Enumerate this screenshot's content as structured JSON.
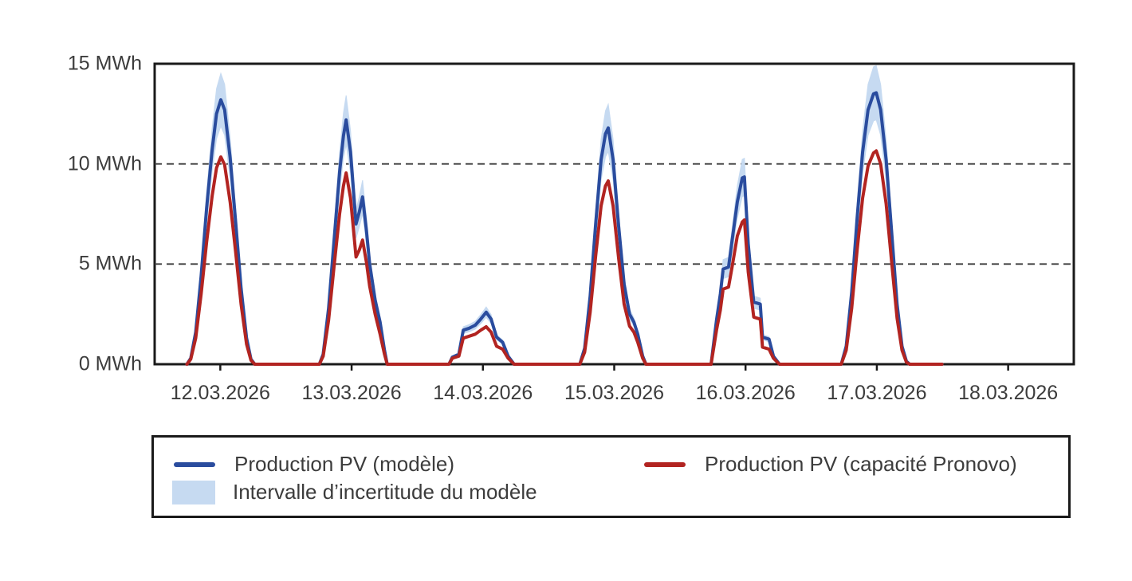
{
  "colors": {
    "model_line": "#2A4C9E",
    "pronovo_line": "#B22421",
    "uncertainty_band": "#C6DAF1",
    "axis": "#1a1a1a",
    "gridline": "#3a3a3a",
    "text": "#3c3c3c"
  },
  "legend": {
    "items": [
      {
        "swatch": "line",
        "color": "#2A4C9E",
        "label": "Production PV (modèle)"
      },
      {
        "swatch": "band",
        "color": "#C6DAF1",
        "label": "Intervalle d’incertitude du modèle"
      },
      {
        "swatch": "line",
        "color": "#B22421",
        "label": "Production PV (capacité Pronovo)"
      }
    ]
  },
  "chart_data": {
    "type": "line",
    "title": "",
    "xlabel": "",
    "ylabel": "",
    "x_unit": "hours since 12.03.2026 00:00",
    "xlim": [
      0,
      168
    ],
    "ylim": [
      0,
      15
    ],
    "y_gridlines": [
      5,
      10
    ],
    "grid_style": "dashed",
    "legend_position": "bottom box, two columns",
    "x_ticks": [
      {
        "label": "12.03.2026",
        "hour": 12
      },
      {
        "label": "13.03.2026",
        "hour": 36
      },
      {
        "label": "14.03.2026",
        "hour": 60
      },
      {
        "label": "15.03.2026",
        "hour": 84
      },
      {
        "label": "16.03.2026",
        "hour": 108
      },
      {
        "label": "17.03.2026",
        "hour": 132
      },
      {
        "label": "18.03.2026",
        "hour": 156
      }
    ],
    "y_ticks": [
      {
        "label": "0 MWh",
        "value": 0
      },
      {
        "label": "5 MWh",
        "value": 5
      },
      {
        "label": "10 MWh",
        "value": 10
      },
      {
        "label": "15 MWh",
        "value": 15
      }
    ],
    "series": [
      {
        "name": "Production PV (modèle)",
        "color": "#2A4C9E",
        "unit": "MWh",
        "points": [
          [
            5.9,
            0
          ],
          [
            6.6,
            0.3
          ],
          [
            7.5,
            1.6
          ],
          [
            8.5,
            4.4
          ],
          [
            9.5,
            7.8
          ],
          [
            10.5,
            10.7
          ],
          [
            11.3,
            12.5
          ],
          [
            12.1,
            13.2
          ],
          [
            12.8,
            12.7
          ],
          [
            13.8,
            10.3
          ],
          [
            14.8,
            7.1
          ],
          [
            15.8,
            3.8
          ],
          [
            16.8,
            1.3
          ],
          [
            17.6,
            0.25
          ],
          [
            18.3,
            0
          ],
          [
            30.1,
            0
          ],
          [
            30.8,
            0.5
          ],
          [
            31.8,
            2.8
          ],
          [
            32.8,
            6.2
          ],
          [
            33.8,
            9.6
          ],
          [
            34.5,
            11.4
          ],
          [
            35.0,
            12.2
          ],
          [
            35.8,
            10.6
          ],
          [
            36.8,
            7.0
          ],
          [
            37.4,
            7.6
          ],
          [
            38.0,
            8.35
          ],
          [
            38.7,
            6.7
          ],
          [
            39.3,
            5.0
          ],
          [
            40.3,
            3.2
          ],
          [
            41.2,
            2.1
          ],
          [
            42.0,
            0.7
          ],
          [
            42.5,
            0
          ],
          [
            53.8,
            0
          ],
          [
            54.4,
            0.35
          ],
          [
            55.6,
            0.5
          ],
          [
            56.4,
            1.7
          ],
          [
            57.5,
            1.8
          ],
          [
            58.6,
            1.95
          ],
          [
            59.6,
            2.25
          ],
          [
            60.6,
            2.6
          ],
          [
            61.5,
            2.25
          ],
          [
            62.5,
            1.35
          ],
          [
            63.6,
            1.1
          ],
          [
            64.6,
            0.4
          ],
          [
            65.7,
            0
          ],
          [
            77.7,
            0
          ],
          [
            78.6,
            0.8
          ],
          [
            79.6,
            3.4
          ],
          [
            80.6,
            7.0
          ],
          [
            81.6,
            10.2
          ],
          [
            82.4,
            11.5
          ],
          [
            82.9,
            11.8
          ],
          [
            83.8,
            10.2
          ],
          [
            84.8,
            6.9
          ],
          [
            85.8,
            4.0
          ],
          [
            86.8,
            2.5
          ],
          [
            87.6,
            2.1
          ],
          [
            88.3,
            1.5
          ],
          [
            89.2,
            0.4
          ],
          [
            89.8,
            0
          ],
          [
            101.7,
            0
          ],
          [
            102.7,
            2.2
          ],
          [
            103.4,
            3.5
          ],
          [
            103.9,
            4.75
          ],
          [
            104.9,
            4.85
          ],
          [
            105.5,
            6.1
          ],
          [
            106.5,
            8.1
          ],
          [
            107.4,
            9.3
          ],
          [
            107.8,
            9.35
          ],
          [
            108.5,
            6.0
          ],
          [
            109.5,
            3.1
          ],
          [
            110.7,
            3.0
          ],
          [
            111.1,
            1.35
          ],
          [
            112.3,
            1.25
          ],
          [
            113.1,
            0.4
          ],
          [
            114.2,
            0
          ],
          [
            125.5,
            0
          ],
          [
            126.4,
            0.9
          ],
          [
            127.4,
            3.6
          ],
          [
            128.4,
            7.3
          ],
          [
            129.4,
            10.6
          ],
          [
            130.4,
            12.7
          ],
          [
            131.4,
            13.5
          ],
          [
            131.9,
            13.55
          ],
          [
            132.7,
            12.7
          ],
          [
            133.7,
            10.2
          ],
          [
            134.7,
            6.6
          ],
          [
            135.7,
            3.0
          ],
          [
            136.6,
            0.9
          ],
          [
            137.4,
            0.15
          ],
          [
            138.0,
            0
          ],
          [
            143.9,
            0
          ]
        ]
      },
      {
        "name": "Production PV (capacité Pronovo)",
        "color": "#B22421",
        "unit": "MWh",
        "points": [
          [
            5.9,
            0
          ],
          [
            6.6,
            0.25
          ],
          [
            7.5,
            1.3
          ],
          [
            8.5,
            3.5
          ],
          [
            9.5,
            6.1
          ],
          [
            10.5,
            8.4
          ],
          [
            11.3,
            9.8
          ],
          [
            12.1,
            10.35
          ],
          [
            12.8,
            9.95
          ],
          [
            13.8,
            8.1
          ],
          [
            14.8,
            5.6
          ],
          [
            15.8,
            3.0
          ],
          [
            16.8,
            1.0
          ],
          [
            17.6,
            0.2
          ],
          [
            18.3,
            0
          ],
          [
            30.1,
            0
          ],
          [
            30.8,
            0.4
          ],
          [
            31.8,
            2.2
          ],
          [
            32.8,
            4.9
          ],
          [
            33.8,
            7.5
          ],
          [
            34.5,
            8.9
          ],
          [
            35.0,
            9.55
          ],
          [
            35.8,
            8.3
          ],
          [
            36.8,
            5.35
          ],
          [
            37.4,
            5.7
          ],
          [
            38.0,
            6.2
          ],
          [
            38.7,
            5.1
          ],
          [
            39.3,
            3.9
          ],
          [
            40.3,
            2.5
          ],
          [
            41.2,
            1.5
          ],
          [
            42.0,
            0.5
          ],
          [
            42.5,
            0
          ],
          [
            53.8,
            0
          ],
          [
            54.4,
            0.3
          ],
          [
            55.6,
            0.4
          ],
          [
            56.4,
            1.3
          ],
          [
            57.5,
            1.4
          ],
          [
            58.6,
            1.5
          ],
          [
            59.6,
            1.7
          ],
          [
            60.6,
            1.87
          ],
          [
            61.5,
            1.6
          ],
          [
            62.5,
            0.9
          ],
          [
            63.6,
            0.75
          ],
          [
            64.6,
            0.3
          ],
          [
            65.7,
            0
          ],
          [
            77.7,
            0
          ],
          [
            78.6,
            0.6
          ],
          [
            79.6,
            2.6
          ],
          [
            80.6,
            5.4
          ],
          [
            81.6,
            7.9
          ],
          [
            82.4,
            8.9
          ],
          [
            82.9,
            9.15
          ],
          [
            83.8,
            7.9
          ],
          [
            84.8,
            5.3
          ],
          [
            85.8,
            3.0
          ],
          [
            86.8,
            1.9
          ],
          [
            87.6,
            1.6
          ],
          [
            88.3,
            1.1
          ],
          [
            89.2,
            0.3
          ],
          [
            89.8,
            0
          ],
          [
            101.7,
            0
          ],
          [
            102.7,
            1.7
          ],
          [
            103.4,
            2.7
          ],
          [
            103.9,
            3.75
          ],
          [
            104.9,
            3.85
          ],
          [
            105.5,
            4.8
          ],
          [
            106.5,
            6.4
          ],
          [
            107.4,
            7.1
          ],
          [
            107.8,
            7.2
          ],
          [
            108.5,
            4.6
          ],
          [
            109.5,
            2.35
          ],
          [
            110.7,
            2.25
          ],
          [
            111.1,
            0.85
          ],
          [
            112.3,
            0.75
          ],
          [
            113.1,
            0.3
          ],
          [
            114.2,
            0
          ],
          [
            125.5,
            0
          ],
          [
            126.4,
            0.7
          ],
          [
            127.4,
            2.8
          ],
          [
            128.4,
            5.7
          ],
          [
            129.4,
            8.3
          ],
          [
            130.4,
            9.9
          ],
          [
            131.4,
            10.55
          ],
          [
            131.9,
            10.65
          ],
          [
            132.7,
            10.0
          ],
          [
            133.7,
            8.0
          ],
          [
            134.7,
            5.1
          ],
          [
            135.7,
            2.3
          ],
          [
            136.6,
            0.7
          ],
          [
            137.4,
            0.1
          ],
          [
            138.0,
            0
          ],
          [
            143.9,
            0
          ]
        ]
      }
    ],
    "uncertainty_band": {
      "name": "Intervalle d’incertitude du modèle",
      "applies_to": "Production PV (modèle)",
      "color": "#C6DAF1",
      "upper_factor": 1.1,
      "lower_factor": 0.9
    }
  }
}
